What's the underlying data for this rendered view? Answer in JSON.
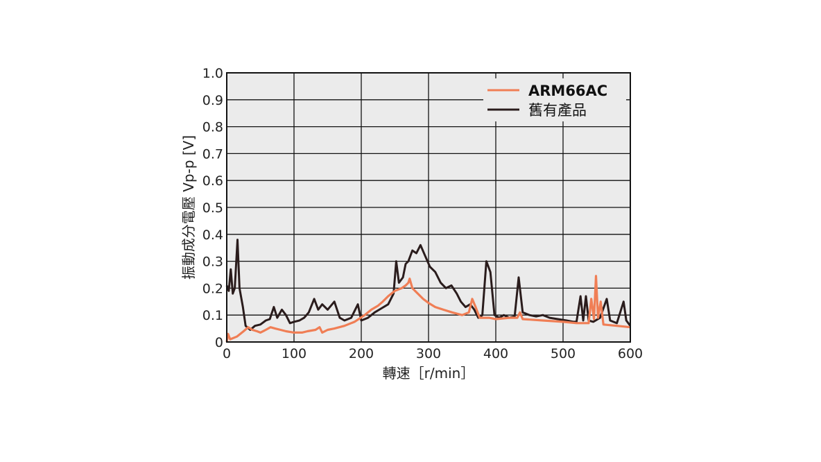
{
  "chart_data": {
    "type": "line",
    "title": "",
    "xlabel": "轉速［r/min］",
    "ylabel": "振動成分電壓 Vp-p [V]",
    "xlim": [
      0,
      600
    ],
    "ylim": [
      0,
      1.0
    ],
    "x_ticks": [
      "0",
      "100",
      "200",
      "300",
      "400",
      "500",
      "600"
    ],
    "x_tick_values": [
      0,
      100,
      200,
      300,
      400,
      500,
      600
    ],
    "y_ticks": [
      "0",
      "0.1",
      "0.2",
      "0.3",
      "0.4",
      "0.5",
      "0.6",
      "0.7",
      "0.8",
      "0.9",
      "1.0"
    ],
    "y_tick_values": [
      0,
      0.1,
      0.2,
      0.3,
      0.4,
      0.5,
      0.6,
      0.7,
      0.8,
      0.9,
      1.0
    ],
    "grid": true,
    "plot_background": "#ebebeb",
    "legend_position": "top-right",
    "series": [
      {
        "name": "ARM66AC",
        "color": "#f07e55",
        "bold_label": true,
        "points": [
          [
            0,
            0.0
          ],
          [
            2,
            0.03
          ],
          [
            5,
            0.01
          ],
          [
            15,
            0.02
          ],
          [
            25,
            0.04
          ],
          [
            32,
            0.055
          ],
          [
            38,
            0.045
          ],
          [
            45,
            0.04
          ],
          [
            50,
            0.035
          ],
          [
            58,
            0.045
          ],
          [
            65,
            0.055
          ],
          [
            72,
            0.05
          ],
          [
            80,
            0.045
          ],
          [
            88,
            0.04
          ],
          [
            100,
            0.035
          ],
          [
            112,
            0.035
          ],
          [
            120,
            0.04
          ],
          [
            132,
            0.045
          ],
          [
            138,
            0.055
          ],
          [
            142,
            0.035
          ],
          [
            150,
            0.045
          ],
          [
            160,
            0.05
          ],
          [
            175,
            0.06
          ],
          [
            190,
            0.075
          ],
          [
            205,
            0.1
          ],
          [
            215,
            0.12
          ],
          [
            225,
            0.135
          ],
          [
            232,
            0.15
          ],
          [
            240,
            0.17
          ],
          [
            250,
            0.19
          ],
          [
            260,
            0.2
          ],
          [
            266,
            0.21
          ],
          [
            270,
            0.22
          ],
          [
            272,
            0.235
          ],
          [
            276,
            0.2
          ],
          [
            282,
            0.185
          ],
          [
            292,
            0.16
          ],
          [
            300,
            0.145
          ],
          [
            310,
            0.13
          ],
          [
            322,
            0.12
          ],
          [
            335,
            0.11
          ],
          [
            350,
            0.1
          ],
          [
            360,
            0.11
          ],
          [
            365,
            0.16
          ],
          [
            370,
            0.13
          ],
          [
            376,
            0.09
          ],
          [
            390,
            0.09
          ],
          [
            400,
            0.085
          ],
          [
            420,
            0.09
          ],
          [
            432,
            0.09
          ],
          [
            436,
            0.11
          ],
          [
            440,
            0.085
          ],
          [
            470,
            0.08
          ],
          [
            500,
            0.075
          ],
          [
            520,
            0.07
          ],
          [
            538,
            0.07
          ],
          [
            542,
            0.16
          ],
          [
            546,
            0.085
          ],
          [
            549,
            0.245
          ],
          [
            552,
            0.09
          ],
          [
            556,
            0.15
          ],
          [
            560,
            0.065
          ],
          [
            580,
            0.06
          ],
          [
            600,
            0.055
          ]
        ]
      },
      {
        "name": "舊有產品",
        "color": "#2a1c1c",
        "bold_label": false,
        "points": [
          [
            0,
            0.21
          ],
          [
            3,
            0.19
          ],
          [
            6,
            0.27
          ],
          [
            9,
            0.18
          ],
          [
            12,
            0.2
          ],
          [
            16,
            0.38
          ],
          [
            19,
            0.2
          ],
          [
            24,
            0.13
          ],
          [
            28,
            0.06
          ],
          [
            35,
            0.045
          ],
          [
            42,
            0.06
          ],
          [
            50,
            0.065
          ],
          [
            58,
            0.08
          ],
          [
            64,
            0.085
          ],
          [
            70,
            0.13
          ],
          [
            75,
            0.09
          ],
          [
            82,
            0.12
          ],
          [
            88,
            0.1
          ],
          [
            94,
            0.07
          ],
          [
            100,
            0.075
          ],
          [
            108,
            0.08
          ],
          [
            115,
            0.09
          ],
          [
            122,
            0.11
          ],
          [
            130,
            0.16
          ],
          [
            136,
            0.12
          ],
          [
            142,
            0.14
          ],
          [
            150,
            0.12
          ],
          [
            160,
            0.15
          ],
          [
            168,
            0.09
          ],
          [
            175,
            0.08
          ],
          [
            185,
            0.09
          ],
          [
            195,
            0.14
          ],
          [
            200,
            0.08
          ],
          [
            210,
            0.09
          ],
          [
            220,
            0.11
          ],
          [
            230,
            0.125
          ],
          [
            240,
            0.14
          ],
          [
            248,
            0.18
          ],
          [
            252,
            0.3
          ],
          [
            256,
            0.22
          ],
          [
            262,
            0.24
          ],
          [
            266,
            0.29
          ],
          [
            270,
            0.3
          ],
          [
            276,
            0.34
          ],
          [
            282,
            0.33
          ],
          [
            288,
            0.36
          ],
          [
            295,
            0.32
          ],
          [
            302,
            0.28
          ],
          [
            310,
            0.26
          ],
          [
            318,
            0.22
          ],
          [
            326,
            0.2
          ],
          [
            334,
            0.21
          ],
          [
            342,
            0.18
          ],
          [
            348,
            0.15
          ],
          [
            355,
            0.13
          ],
          [
            362,
            0.14
          ],
          [
            368,
            0.12
          ],
          [
            374,
            0.09
          ],
          [
            380,
            0.1
          ],
          [
            386,
            0.3
          ],
          [
            392,
            0.26
          ],
          [
            398,
            0.1
          ],
          [
            405,
            0.09
          ],
          [
            412,
            0.1
          ],
          [
            420,
            0.09
          ],
          [
            428,
            0.095
          ],
          [
            434,
            0.24
          ],
          [
            440,
            0.11
          ],
          [
            450,
            0.1
          ],
          [
            460,
            0.095
          ],
          [
            470,
            0.1
          ],
          [
            480,
            0.09
          ],
          [
            492,
            0.085
          ],
          [
            505,
            0.08
          ],
          [
            515,
            0.075
          ],
          [
            520,
            0.075
          ],
          [
            526,
            0.17
          ],
          [
            530,
            0.08
          ],
          [
            534,
            0.17
          ],
          [
            538,
            0.08
          ],
          [
            545,
            0.075
          ],
          [
            555,
            0.09
          ],
          [
            565,
            0.16
          ],
          [
            570,
            0.08
          ],
          [
            580,
            0.07
          ],
          [
            590,
            0.15
          ],
          [
            594,
            0.08
          ],
          [
            600,
            0.06
          ]
        ]
      }
    ]
  }
}
